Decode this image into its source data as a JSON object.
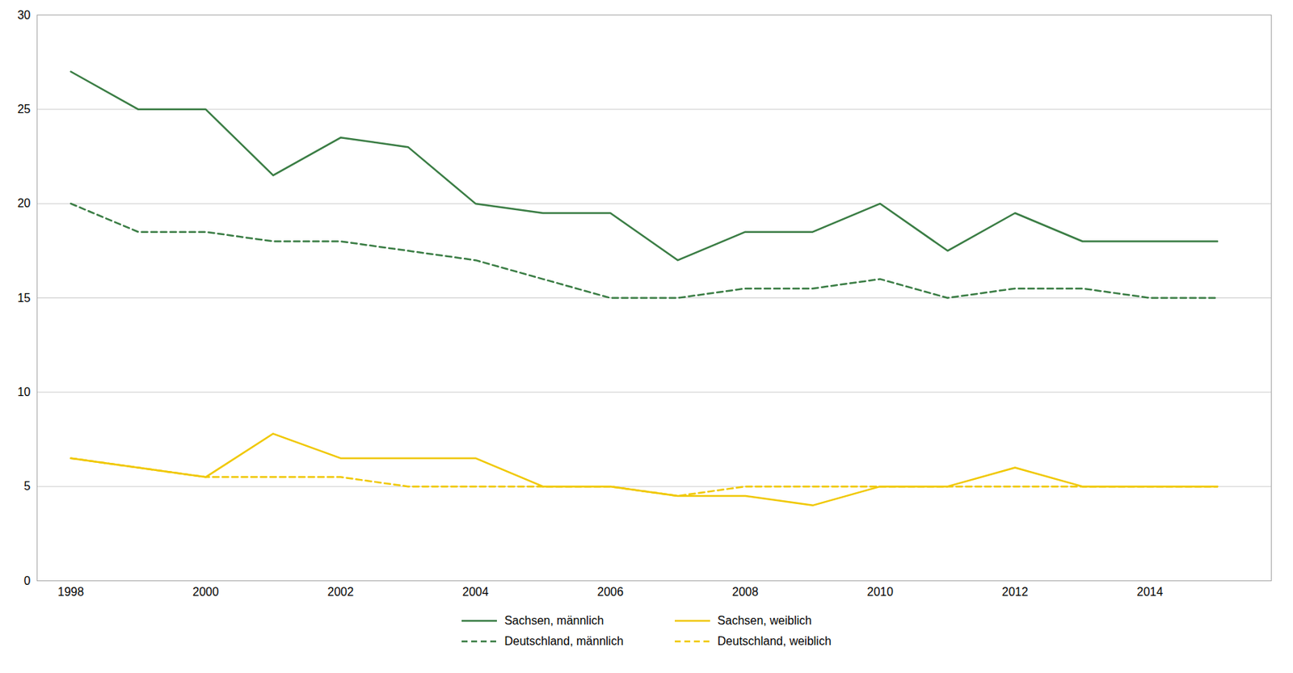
{
  "chart_data": {
    "type": "line",
    "x": [
      1998,
      1999,
      2000,
      2001,
      2002,
      2003,
      2004,
      2005,
      2006,
      2007,
      2008,
      2009,
      2010,
      2011,
      2012,
      2013,
      2014,
      2015
    ],
    "series": [
      {
        "name": "Sachsen, männlich",
        "color": "#3a7d44",
        "line_style": "solid",
        "values": [
          27,
          25,
          25,
          21.5,
          23.5,
          23,
          20,
          19.5,
          19.5,
          17,
          18.5,
          18.5,
          20,
          17.5,
          19.5,
          18,
          18,
          18
        ]
      },
      {
        "name": "Deutschland, männlich",
        "color": "#3a7d44",
        "line_style": "dashed",
        "values": [
          20,
          18.5,
          18.5,
          18,
          18,
          17.5,
          17,
          16,
          15,
          15,
          15.5,
          15.5,
          16,
          15,
          15.5,
          15.5,
          15,
          15
        ]
      },
      {
        "name": "Sachsen, weiblich",
        "color": "#f0c800",
        "line_style": "solid",
        "values": [
          6.5,
          6,
          5.5,
          7.8,
          6.5,
          6.5,
          6.5,
          5,
          5,
          4.5,
          4.5,
          4,
          5,
          5,
          6,
          5,
          5,
          5
        ]
      },
      {
        "name": "Deutschland, weiblich",
        "color": "#f0c800",
        "line_style": "dashed",
        "values": [
          6.5,
          6,
          5.5,
          5.5,
          5.5,
          5,
          5,
          5,
          5,
          4.5,
          5,
          5,
          5,
          5,
          5,
          5,
          5,
          5
        ]
      }
    ],
    "xlim": [
      1997.5,
      2015.8
    ],
    "xticks": [
      1998,
      2000,
      2002,
      2004,
      2006,
      2008,
      2010,
      2012,
      2014
    ],
    "ylim": [
      0,
      30
    ],
    "yticks": [
      0,
      5,
      10,
      15,
      20,
      25,
      30
    ],
    "grid": true,
    "legend": "bottom"
  }
}
